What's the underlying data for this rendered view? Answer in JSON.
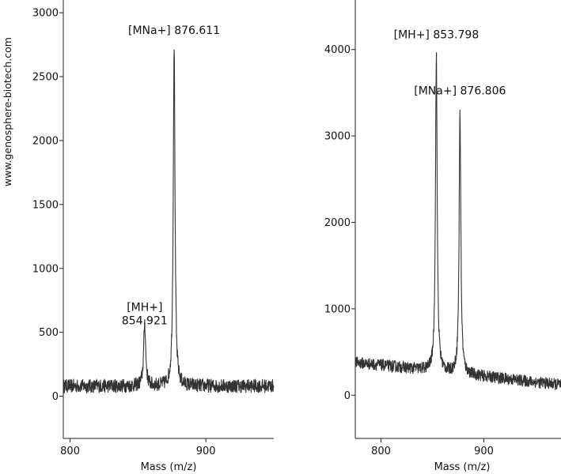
{
  "watermark": "www.genosphere-biotech.com",
  "chart_data": [
    {
      "type": "line",
      "xlabel": "Mass (m/z)",
      "ylabel": "",
      "xlim": [
        795,
        950
      ],
      "ylim": [
        -330,
        3050
      ],
      "xticks": [
        800,
        900
      ],
      "yticks": [
        0,
        500,
        1000,
        1500,
        2000,
        2500,
        3000
      ],
      "grid": false,
      "baseline": 80,
      "noise": 55,
      "trend": 0.0,
      "peaks": [
        {
          "mz": 854.921,
          "height": 500,
          "width": 0.9
        },
        {
          "mz": 876.611,
          "height": 2680,
          "width": 0.75
        }
      ],
      "series": [
        {
          "values_summary": [
            [
              795,
              80
            ],
            [
              850,
              95
            ],
            [
              854.921,
              490
            ],
            [
              860,
              120
            ],
            [
              872,
              200
            ],
            [
              876.611,
              2760
            ],
            [
              880,
              300
            ],
            [
              890,
              150
            ],
            [
              950,
              110
            ]
          ]
        }
      ],
      "annotations": [
        {
          "x": 876.611,
          "y": 2760,
          "lines": [
            "[MNa+] 876.611"
          ]
        },
        {
          "x": 854.921,
          "y": 490,
          "lines": [
            "[MH+]",
            "854.921"
          ]
        }
      ]
    },
    {
      "type": "line",
      "xlabel": "Mass (m/z)",
      "ylabel": "",
      "xlim": [
        775,
        975
      ],
      "ylim": [
        -500,
        4500
      ],
      "xticks": [
        800,
        900
      ],
      "yticks": [
        0,
        1000,
        2000,
        3000,
        4000
      ],
      "grid": false,
      "baseline": 380,
      "noise": 70,
      "trend": -1.3,
      "peaks": [
        {
          "mz": 853.798,
          "height": 3680,
          "width": 1.0
        },
        {
          "mz": 876.806,
          "height": 3000,
          "width": 1.0
        }
      ],
      "series": [
        {
          "values_summary": [
            [
              775,
              330
            ],
            [
              840,
              380
            ],
            [
              853.798,
              4020
            ],
            [
              865,
              350
            ],
            [
              876.806,
              3370
            ],
            [
              890,
              220
            ],
            [
              975,
              150
            ]
          ]
        }
      ],
      "annotations": [
        {
          "x": 853.798,
          "y": 4020,
          "lines": [
            "[MH+] 853.798"
          ]
        },
        {
          "x": 876.806,
          "y": 3370,
          "lines": [
            "[MNa+] 876.806"
          ]
        }
      ]
    }
  ]
}
